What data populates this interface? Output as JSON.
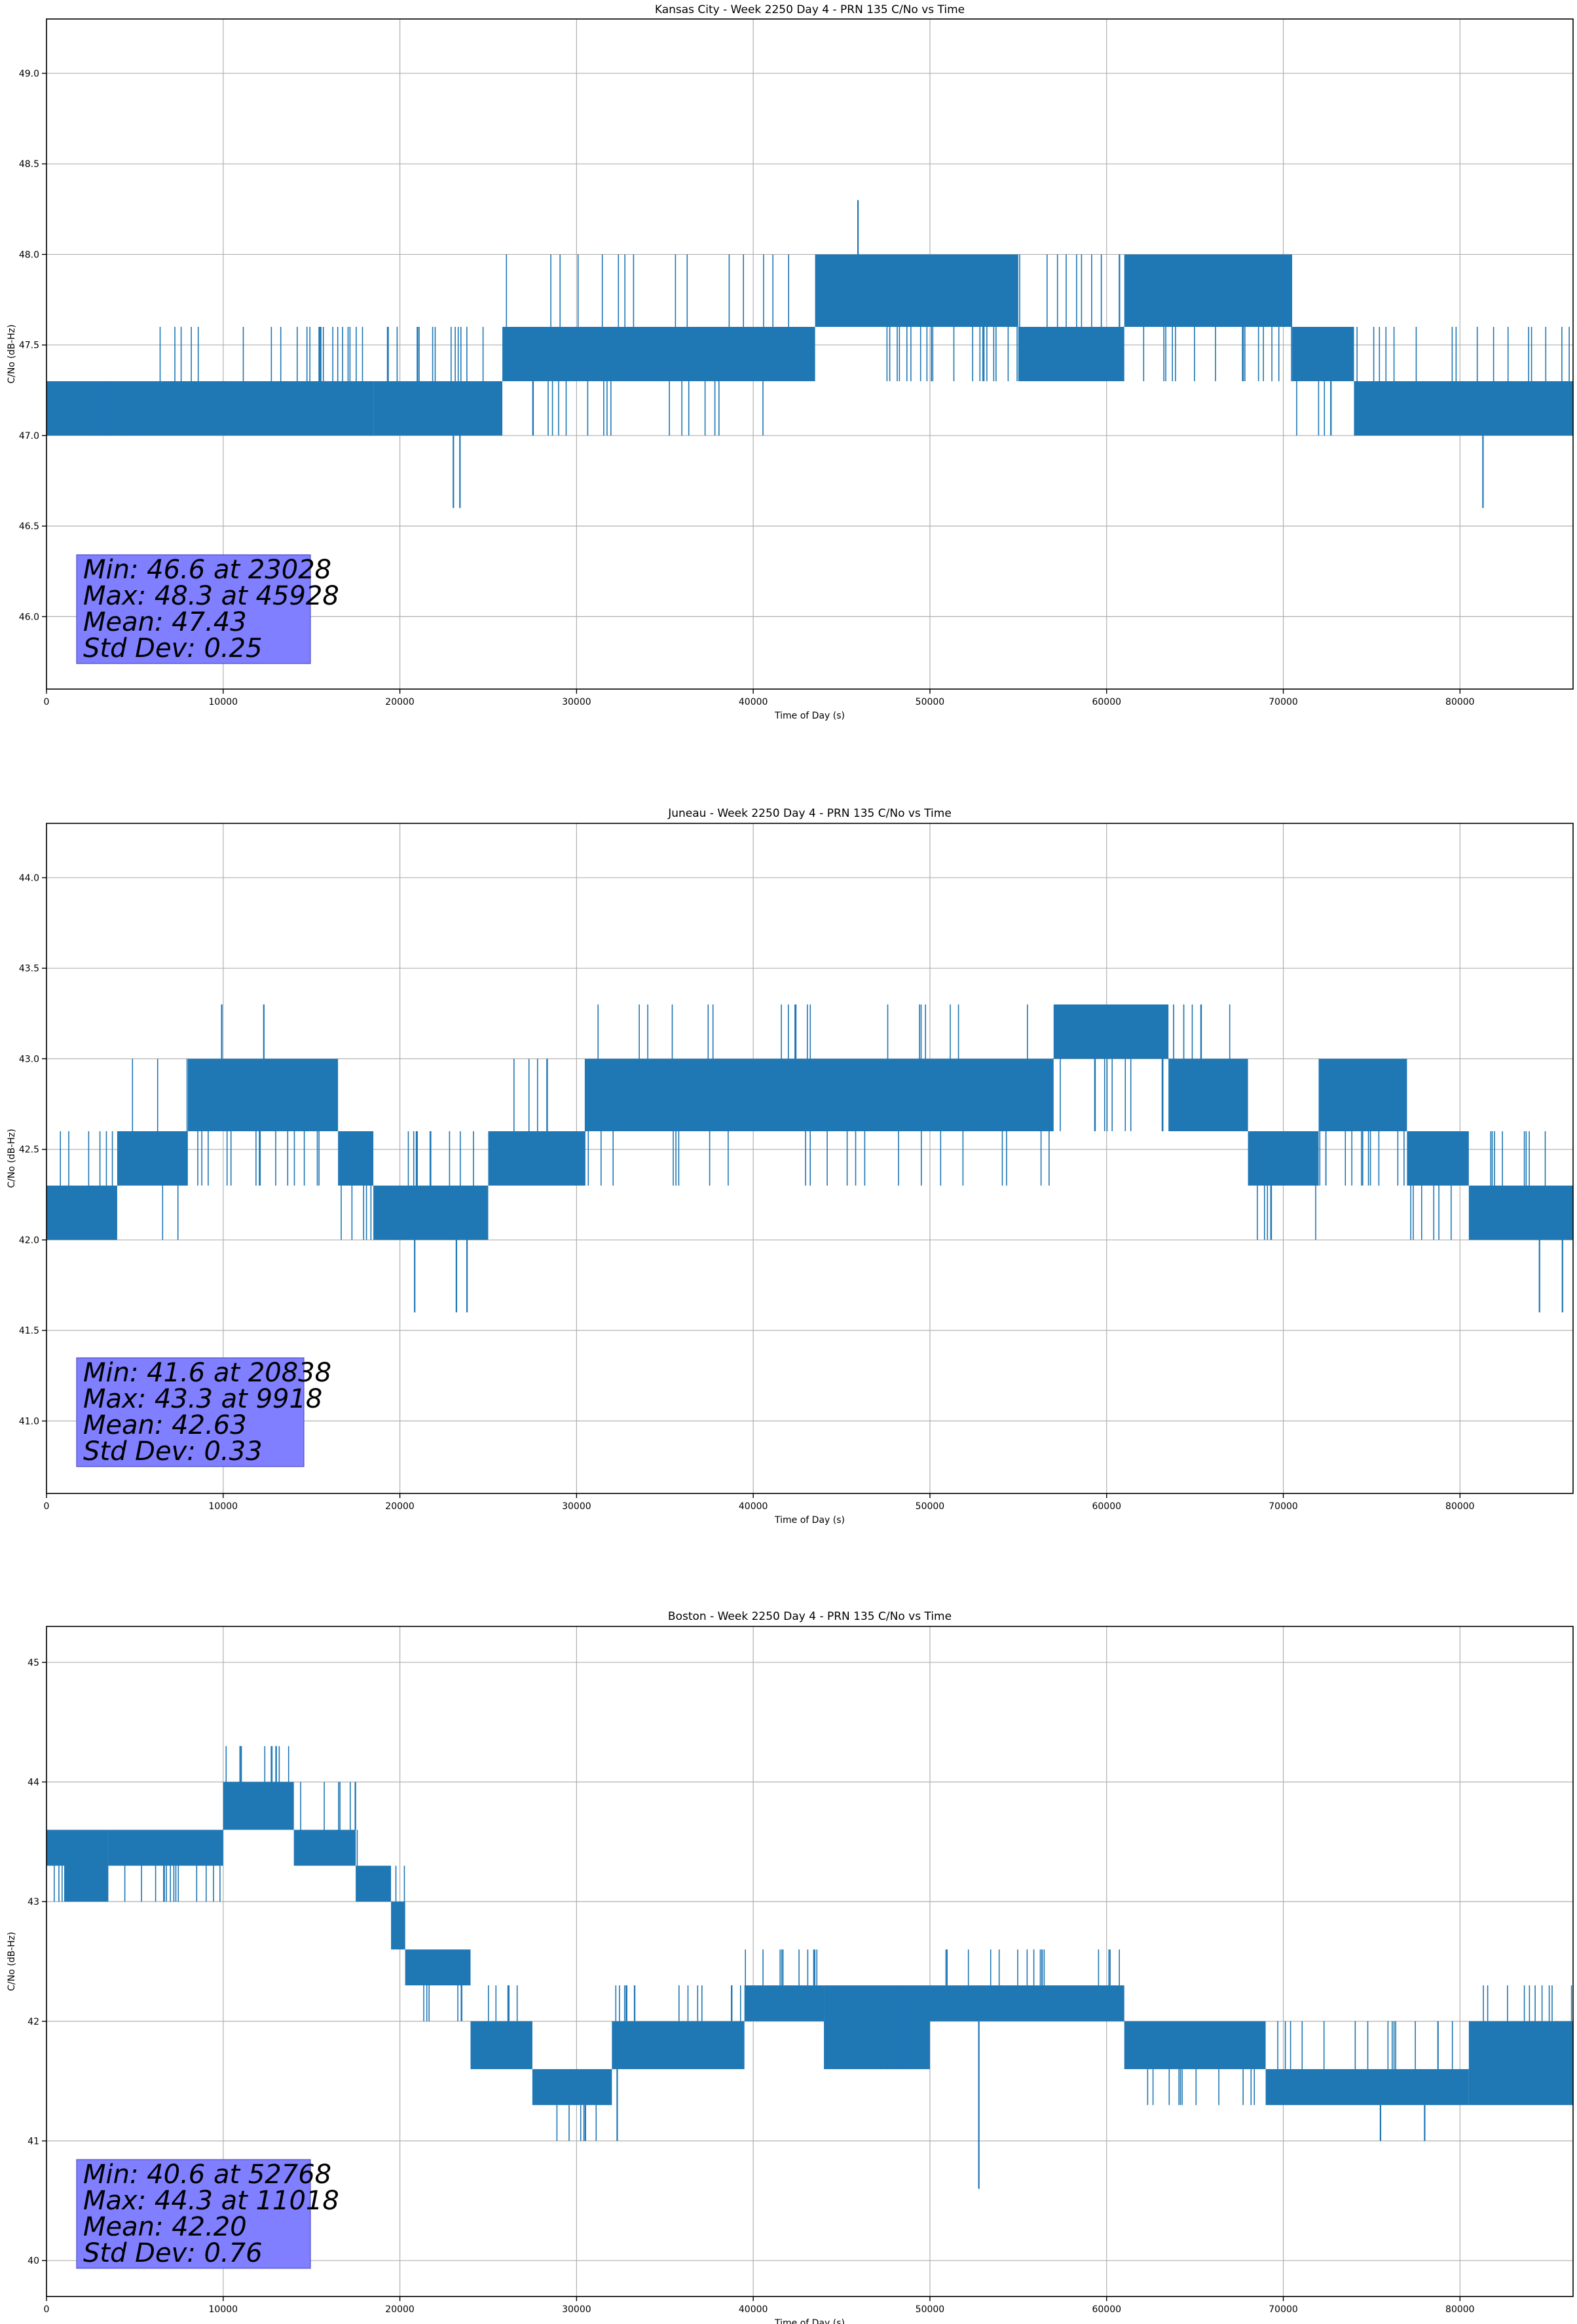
{
  "colors": {
    "series": "#1f77b4",
    "stats_box": "#7f7fff",
    "grid": "#b0b0b0",
    "axes": "#000000"
  },
  "chart_data": [
    {
      "type": "line",
      "title": "Kansas City - Week 2250 Day 4 - PRN 135 C/No vs Time",
      "xlabel": "Time of Day (s)",
      "ylabel": "C/No (dB-Hz)",
      "xlim": [
        0,
        86400
      ],
      "ylim": [
        45.6,
        49.3
      ],
      "grid": true,
      "x_ticks": [
        0,
        10000,
        20000,
        30000,
        40000,
        50000,
        60000,
        70000,
        80000
      ],
      "x_tick_labels": [
        "0",
        "10000",
        "20000",
        "30000",
        "40000",
        "50000",
        "60000",
        "70000",
        "80000"
      ],
      "y_ticks": [
        46.0,
        46.5,
        47.0,
        47.5,
        48.0,
        48.5,
        49.0
      ],
      "y_tick_labels": [
        "46.0",
        "46.5",
        "47.0",
        "47.5",
        "48.0",
        "48.5",
        "49.0"
      ],
      "series": [
        {
          "name": "PRN 135 C/No",
          "band_segments": [
            {
              "x": [
                0,
                4800
              ],
              "low": 47.0,
              "high": 47.3,
              "spikes": [
                47.3
              ]
            },
            {
              "x": [
                4800,
                18500
              ],
              "low": 47.0,
              "high": 47.3,
              "spikes": [
                47.6
              ]
            },
            {
              "x": [
                18500,
                25800
              ],
              "low": 47.0,
              "high": 47.3,
              "spikes": [
                47.6
              ]
            },
            {
              "x": [
                25800,
                43500
              ],
              "low": 47.3,
              "high": 47.6,
              "spikes": [
                48.0,
                47.0
              ]
            },
            {
              "x": [
                43500,
                55000
              ],
              "low": 47.6,
              "high": 48.0,
              "spikes": [
                47.3
              ]
            },
            {
              "x": [
                55000,
                61000
              ],
              "low": 47.3,
              "high": 47.6,
              "spikes": [
                48.0
              ]
            },
            {
              "x": [
                61000,
                70500
              ],
              "low": 47.6,
              "high": 48.0,
              "spikes": [
                47.3
              ]
            },
            {
              "x": [
                70500,
                74000
              ],
              "low": 47.3,
              "high": 47.6,
              "spikes": [
                47.0
              ]
            },
            {
              "x": [
                74000,
                86400
              ],
              "low": 47.0,
              "high": 47.3,
              "spikes": [
                47.6
              ]
            }
          ],
          "outliers": [
            [
              23028,
              46.6
            ],
            [
              23400,
              46.6
            ],
            [
              81300,
              46.6
            ],
            [
              45928,
              48.3
            ]
          ]
        }
      ],
      "annotations": {
        "stats": [
          "Min: 46.6 at 23028",
          "Max: 48.3 at 45928",
          "Mean: 47.43",
          "Std Dev: 0.25"
        ],
        "placement": "bottom-left"
      }
    },
    {
      "type": "line",
      "title": "Juneau - Week 2250 Day 4 - PRN 135 C/No vs Time",
      "xlabel": "Time of Day (s)",
      "ylabel": "C/No (dB-Hz)",
      "xlim": [
        0,
        86400
      ],
      "ylim": [
        40.6,
        44.3
      ],
      "grid": true,
      "x_ticks": [
        0,
        10000,
        20000,
        30000,
        40000,
        50000,
        60000,
        70000,
        80000
      ],
      "x_tick_labels": [
        "0",
        "10000",
        "20000",
        "30000",
        "40000",
        "50000",
        "60000",
        "70000",
        "80000"
      ],
      "y_ticks": [
        41.0,
        41.5,
        42.0,
        42.5,
        43.0,
        43.5,
        44.0
      ],
      "y_tick_labels": [
        "41.0",
        "41.5",
        "42.0",
        "42.5",
        "43.0",
        "43.5",
        "44.0"
      ],
      "series": [
        {
          "name": "PRN 135 C/No",
          "band_segments": [
            {
              "x": [
                0,
                4000
              ],
              "low": 42.0,
              "high": 42.3,
              "spikes": [
                42.6
              ]
            },
            {
              "x": [
                4000,
                8000
              ],
              "low": 42.3,
              "high": 42.6,
              "spikes": [
                42.0,
                43.0
              ]
            },
            {
              "x": [
                8000,
                16500
              ],
              "low": 42.6,
              "high": 43.0,
              "spikes": [
                42.3
              ]
            },
            {
              "x": [
                16500,
                18500
              ],
              "low": 42.3,
              "high": 42.6,
              "spikes": [
                42.0
              ]
            },
            {
              "x": [
                18500,
                25000
              ],
              "low": 42.0,
              "high": 42.3,
              "spikes": [
                42.6
              ]
            },
            {
              "x": [
                25000,
                30500
              ],
              "low": 42.3,
              "high": 42.6,
              "spikes": [
                43.0
              ]
            },
            {
              "x": [
                30500,
                57000
              ],
              "low": 42.6,
              "high": 43.0,
              "spikes": [
                43.3,
                42.3
              ]
            },
            {
              "x": [
                57000,
                63500
              ],
              "low": 43.0,
              "high": 43.3,
              "spikes": [
                42.6
              ]
            },
            {
              "x": [
                63500,
                68000
              ],
              "low": 42.6,
              "high": 43.0,
              "spikes": [
                43.3
              ]
            },
            {
              "x": [
                68000,
                72000
              ],
              "low": 42.3,
              "high": 42.6,
              "spikes": [
                42.0
              ]
            },
            {
              "x": [
                72000,
                77000
              ],
              "low": 42.6,
              "high": 43.0,
              "spikes": [
                42.3
              ]
            },
            {
              "x": [
                77000,
                80500
              ],
              "low": 42.3,
              "high": 42.6,
              "spikes": [
                42.0
              ]
            },
            {
              "x": [
                80500,
                86400
              ],
              "low": 42.0,
              "high": 42.3,
              "spikes": [
                42.6
              ]
            }
          ],
          "outliers": [
            [
              20838,
              41.6
            ],
            [
              23200,
              41.6
            ],
            [
              23800,
              41.6
            ],
            [
              84500,
              41.6
            ],
            [
              85800,
              41.6
            ],
            [
              9918,
              43.3
            ],
            [
              12300,
              43.3
            ]
          ]
        }
      ],
      "annotations": {
        "stats": [
          "Min: 41.6 at 20838",
          "Max: 43.3 at 9918",
          "Mean: 42.63",
          "Std Dev: 0.33"
        ],
        "placement": "bottom-left"
      }
    },
    {
      "type": "line",
      "title": "Boston - Week 2250 Day 4 - PRN 135 C/No vs Time",
      "xlabel": "Time of Day (s)",
      "ylabel": "C/No (dB-Hz)",
      "xlim": [
        0,
        86400
      ],
      "ylim": [
        39.7,
        45.3
      ],
      "grid": true,
      "x_ticks": [
        0,
        10000,
        20000,
        30000,
        40000,
        50000,
        60000,
        70000,
        80000
      ],
      "x_tick_labels": [
        "0",
        "10000",
        "20000",
        "30000",
        "40000",
        "50000",
        "60000",
        "70000",
        "80000"
      ],
      "y_ticks": [
        40,
        41,
        42,
        43,
        44,
        45
      ],
      "y_tick_labels": [
        "40",
        "41",
        "42",
        "43",
        "44",
        "45"
      ],
      "series": [
        {
          "name": "PRN 135 C/No",
          "band_segments": [
            {
              "x": [
                0,
                1000
              ],
              "low": 43.3,
              "high": 43.6,
              "spikes": [
                43.0
              ]
            },
            {
              "x": [
                1000,
                3500
              ],
              "low": 43.0,
              "high": 43.6,
              "spikes": [
                43.0
              ]
            },
            {
              "x": [
                3500,
                10000
              ],
              "low": 43.3,
              "high": 43.6,
              "spikes": [
                43.0
              ]
            },
            {
              "x": [
                10000,
                14000
              ],
              "low": 43.6,
              "high": 44.0,
              "spikes": [
                44.3
              ]
            },
            {
              "x": [
                14000,
                17500
              ],
              "low": 43.3,
              "high": 43.6,
              "spikes": [
                44.0
              ]
            },
            {
              "x": [
                17500,
                19500
              ],
              "low": 43.0,
              "high": 43.3,
              "spikes": [
                43.6
              ]
            },
            {
              "x": [
                19500,
                20300
              ],
              "low": 42.6,
              "high": 43.0,
              "spikes": [
                43.3
              ]
            },
            {
              "x": [
                20300,
                24000
              ],
              "low": 42.3,
              "high": 42.6,
              "spikes": [
                42.0
              ]
            },
            {
              "x": [
                24000,
                27500
              ],
              "low": 41.6,
              "high": 42.0,
              "spikes": [
                42.3
              ]
            },
            {
              "x": [
                27500,
                32000
              ],
              "low": 41.3,
              "high": 41.6,
              "spikes": [
                41.0
              ]
            },
            {
              "x": [
                32000,
                39500
              ],
              "low": 41.6,
              "high": 42.0,
              "spikes": [
                42.3
              ]
            },
            {
              "x": [
                39500,
                44000
              ],
              "low": 42.0,
              "high": 42.3,
              "spikes": [
                42.6
              ]
            },
            {
              "x": [
                44000,
                50000
              ],
              "low": 41.6,
              "high": 42.3,
              "spikes": [
                42.3
              ]
            },
            {
              "x": [
                50000,
                61000
              ],
              "low": 42.0,
              "high": 42.3,
              "spikes": [
                42.6
              ]
            },
            {
              "x": [
                61000,
                69000
              ],
              "low": 41.6,
              "high": 42.0,
              "spikes": [
                41.3
              ]
            },
            {
              "x": [
                69000,
                80500
              ],
              "low": 41.3,
              "high": 41.6,
              "spikes": [
                42.0
              ]
            },
            {
              "x": [
                80500,
                86400
              ],
              "low": 41.3,
              "high": 42.0,
              "spikes": [
                42.3
              ]
            }
          ],
          "outliers": [
            [
              52768,
              40.6
            ],
            [
              30500,
              41.0
            ],
            [
              32300,
              41.0
            ],
            [
              75500,
              41.0
            ],
            [
              78000,
              41.0
            ],
            [
              11018,
              44.3
            ],
            [
              13000,
              44.3
            ]
          ]
        }
      ],
      "annotations": {
        "stats": [
          "Min: 40.6 at 52768",
          "Max: 44.3 at 11018",
          "Mean: 42.20",
          "Std Dev: 0.76"
        ],
        "placement": "bottom-left"
      }
    }
  ]
}
